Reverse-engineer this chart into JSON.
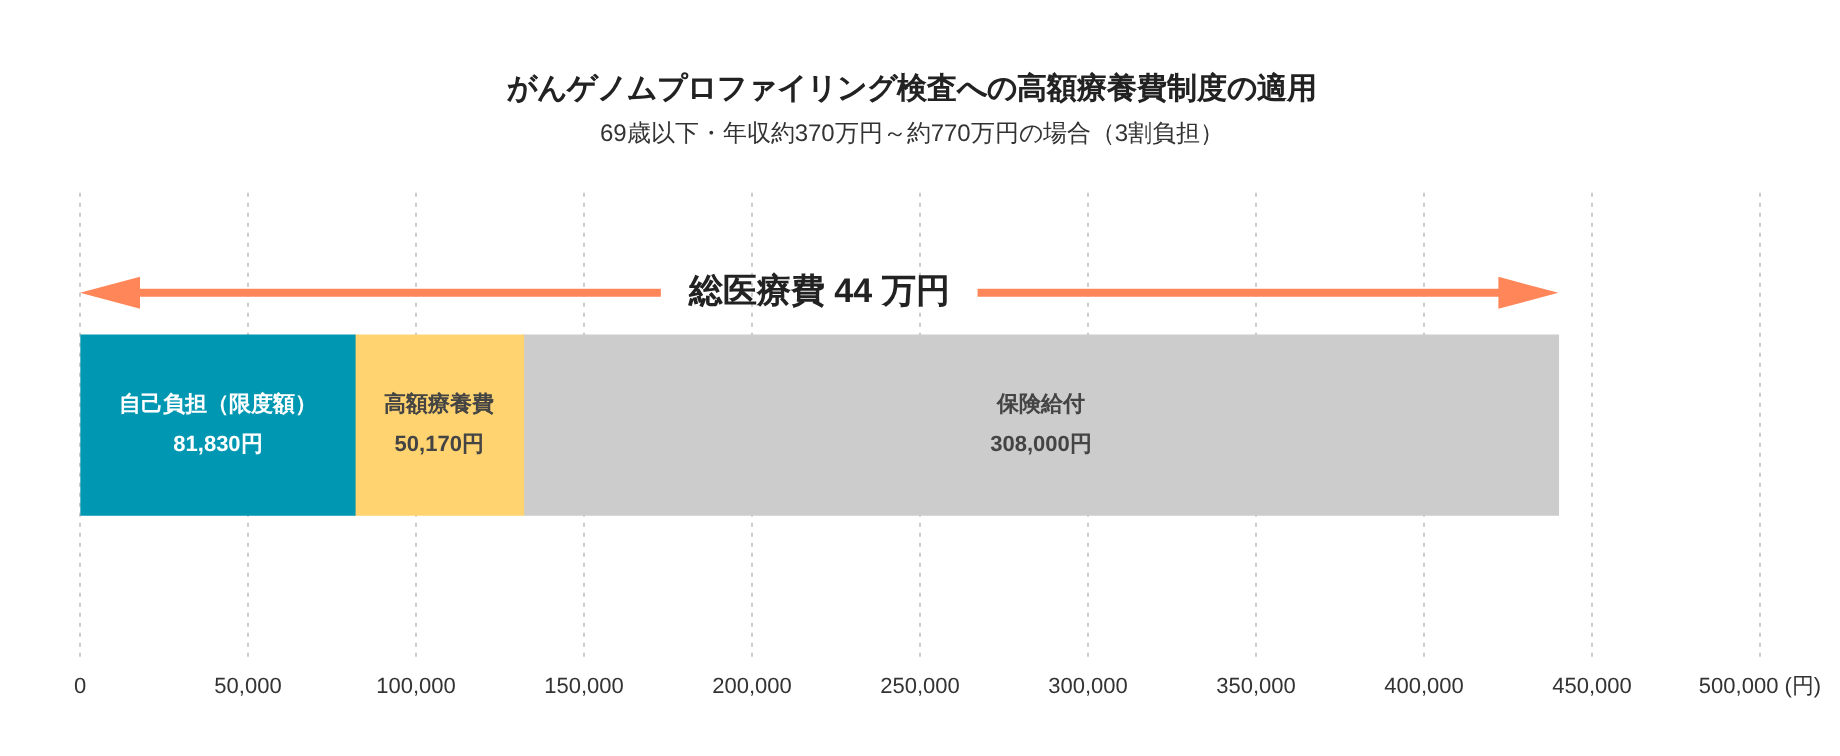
{
  "chart_data": {
    "type": "bar",
    "orientation": "horizontal",
    "stacked": true,
    "title": "がんゲノムプロファイリング検査への高額療養費制度の適用",
    "subtitle": "69歳以下・年収約370万円～約770万円の場合（3割負担）",
    "categories": [
      null
    ],
    "series": [
      {
        "name": "自己負担（限度額）",
        "color": "#0097b2",
        "values": [
          81830
        ],
        "value_labels": [
          "81,830円"
        ]
      },
      {
        "name": "高額療養費",
        "color": "#ffd370",
        "values": [
          50170
        ],
        "value_labels": [
          "50,170円"
        ]
      },
      {
        "name": "保険給付",
        "color": "#cccccc",
        "values": [
          308000
        ],
        "value_labels": [
          "308,000円"
        ]
      }
    ],
    "annotations": [
      "総医療費 44 万円"
    ],
    "xlim": [
      0,
      500000
    ],
    "xticks": [
      {
        "value": 0,
        "label": "0"
      },
      {
        "value": 50000,
        "label": "50,000"
      },
      {
        "value": 100000,
        "label": "100,000"
      },
      {
        "value": 150000,
        "label": "150,000"
      },
      {
        "value": 200000,
        "label": "200,000"
      },
      {
        "value": 250000,
        "label": "250,000"
      },
      {
        "value": 300000,
        "label": "300,000"
      },
      {
        "value": 350000,
        "label": "350,000"
      },
      {
        "value": 400000,
        "label": "400,000"
      },
      {
        "value": 450000,
        "label": "450,000"
      },
      {
        "value": 500000,
        "label": "500,000 (円)"
      }
    ],
    "grid": "x",
    "tick_labels": "x"
  }
}
